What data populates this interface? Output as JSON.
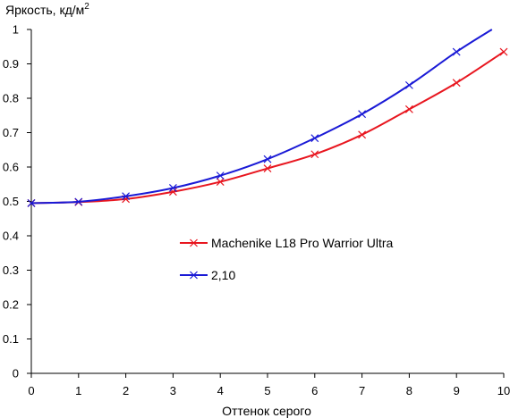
{
  "chart_data": {
    "type": "line",
    "ylabel": "Яркость, кд/м",
    "ylabel_superscript": "2",
    "xlabel": "Оттенок серого",
    "xlim": [
      0,
      10
    ],
    "ylim": [
      0,
      1
    ],
    "x_ticks": [
      "0",
      "1",
      "2",
      "3",
      "4",
      "5",
      "6",
      "7",
      "8",
      "9",
      "10"
    ],
    "y_ticks": [
      "0",
      "0.1",
      "0.2",
      "0.3",
      "0.4",
      "0.5",
      "0.6",
      "0.7",
      "0.8",
      "0.9",
      "1"
    ],
    "grid": false,
    "legend_position": "center-right",
    "series": [
      {
        "name": "Machenike L18 Pro Warrior Ultra",
        "color": "#e8161f",
        "x": [
          0,
          1,
          2,
          3,
          4,
          5,
          6,
          7,
          8,
          9,
          10
        ],
        "y": [
          0.495,
          0.498,
          0.507,
          0.528,
          0.557,
          0.596,
          0.637,
          0.694,
          0.768,
          0.845,
          0.935
        ]
      },
      {
        "name": "2,10",
        "color": "#1a1ad6",
        "x": [
          0,
          1,
          2,
          3,
          4,
          5,
          6,
          7,
          8,
          9,
          9.75
        ],
        "y": [
          0.495,
          0.499,
          0.515,
          0.539,
          0.575,
          0.623,
          0.684,
          0.754,
          0.838,
          0.935,
          1.0
        ]
      }
    ]
  }
}
